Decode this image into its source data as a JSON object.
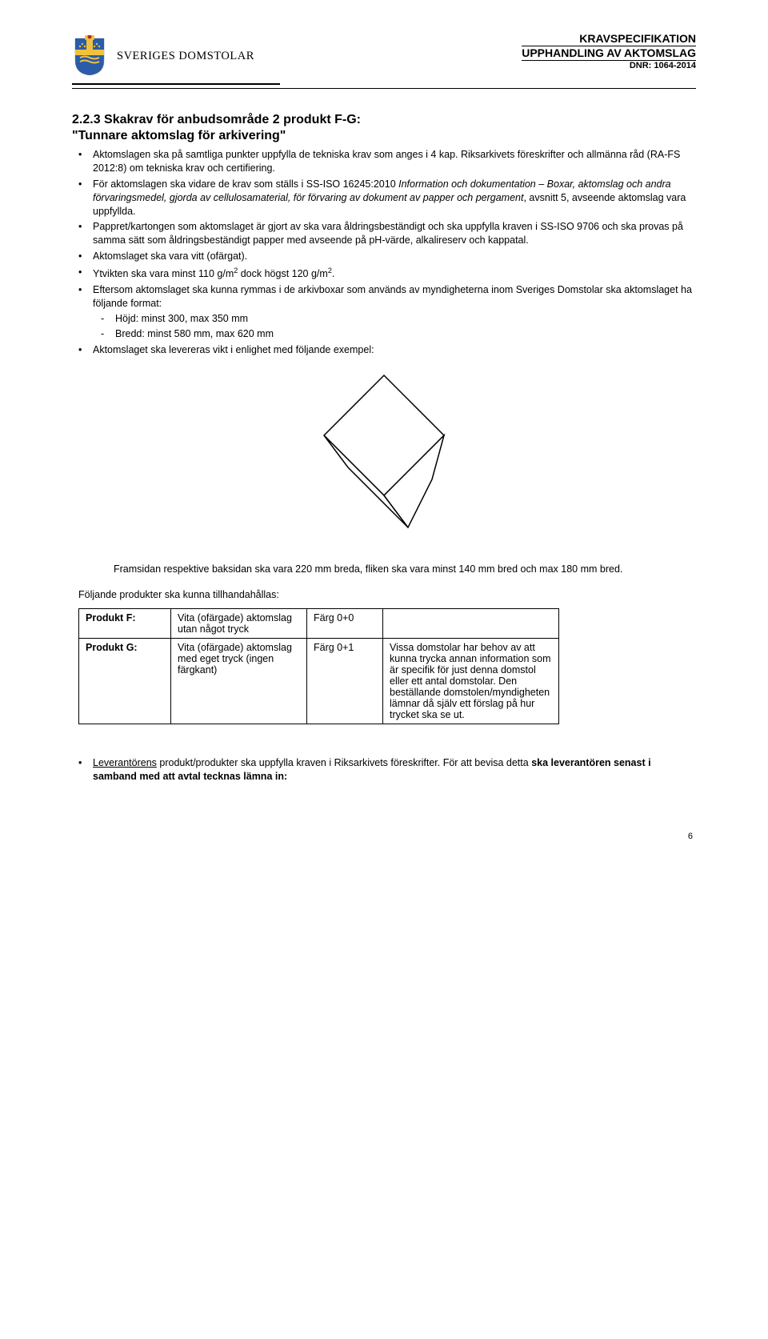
{
  "header": {
    "org_name": "SVERIGES DOMSTOLAR",
    "line1": "KRAVSPECIFIKATION",
    "line2": "UPPHANDLING AV AKTOMSLAG",
    "line3": "DNR: 1064-2014"
  },
  "section": {
    "heading": "2.2.3 Skakrav för anbudsområde 2 produkt F-G:",
    "title": "\"Tunnare aktomslag för arkivering\""
  },
  "bullets": [
    {
      "pre": "Aktomslagen ska på samtliga punkter uppfylla de tekniska krav som anges i 4 kap. Riksarkivets föreskrifter och allmänna råd (RA-FS 2012:8) om tekniska krav och certifiering."
    },
    {
      "pre": "För aktomslagen ska vidare de krav som ställs i SS-ISO 16245:2010 ",
      "italic": "Information och dokumentation – Boxar, aktomslag och andra förvaringsmedel, gjorda av cellulosamaterial, för förvaring av dokument av papper och pergament",
      "post": ", avsnitt 5, avseende aktomslag vara uppfyllda."
    },
    {
      "pre": "Pappret/kartongen som aktomslaget är gjort av ska vara åldringsbeständigt och ska uppfylla kraven i SS-ISO 9706 och ska provas på samma sätt som åldringsbeständigt papper med avseende på pH-värde, alkalireserv och kappatal."
    },
    {
      "pre": "Aktomslaget ska vara vitt (ofärgat)."
    },
    {
      "html": "Ytvikten ska vara minst 110 g/m<span class=\"sup\">2</span> dock högst 120 g/m<span class=\"sup\">2</span>."
    },
    {
      "pre": "Eftersom aktomslaget ska kunna rymmas i de arkivboxar som används av myndigheterna inom Sveriges Domstolar ska aktomslaget ha följande format:",
      "dashes": [
        "Höjd: minst 300, max 350 mm",
        "Bredd: minst 580 mm, max 620 mm"
      ]
    },
    {
      "pre": "Aktomslaget ska levereras vikt i enlighet med följande exempel:"
    }
  ],
  "afterDiagram": "Framsidan respektive baksidan ska vara 220 mm breda, fliken ska vara minst 140 mm bred och max 180 mm bred.",
  "tableLead": "Följande produkter ska kunna tillhandahållas:",
  "products": {
    "rows": [
      {
        "c1": "Produkt F:",
        "c2": "Vita (ofärgade) aktomslag utan något tryck",
        "c3": "Färg 0+0",
        "c4": ""
      },
      {
        "c1": "Produkt G:",
        "c2": "Vita (ofärgade) aktomslag med eget tryck (ingen färgkant)",
        "c3": "Färg 0+1",
        "c4": "Vissa domstolar har behov av att kunna trycka annan information som är specifik för just denna domstol eller ett antal domstolar. Den beställande domstolen/myndigheten lämnar då själv ett förslag på hur trycket ska se ut."
      }
    ]
  },
  "footerBullet": {
    "pre": "Leverantörens produkt/produkter ska uppfylla kraven i Riksarkivets föreskrifter. För att bevisa detta ",
    "bold": "ska leverantören senast i samband med att avtal tecknas lämna in:",
    "underlined": "Leverantörens"
  },
  "pageNumber": "6",
  "colors": {
    "text": "#000000",
    "shield_blue": "#2a5caa",
    "shield_gold": "#f0c23c",
    "shield_red": "#b02a2a"
  }
}
